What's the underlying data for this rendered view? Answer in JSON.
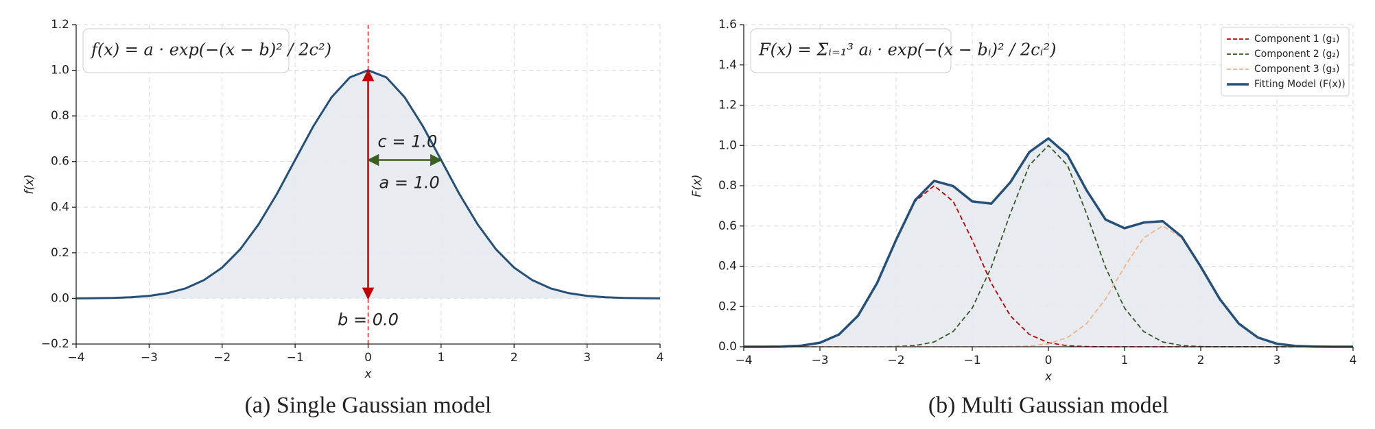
{
  "chart_data": [
    {
      "type": "line",
      "title": "(a) Single Gaussian model",
      "x_label": "x",
      "y_label": "f(x)",
      "formula": "f(x) = a · exp(−(x − b)² / 2c²)",
      "x": [
        -4,
        -3.75,
        -3.5,
        -3.25,
        -3,
        -2.75,
        -2.5,
        -2.25,
        -2,
        -1.75,
        -1.5,
        -1.25,
        -1,
        -0.75,
        -0.5,
        -0.25,
        0,
        0.25,
        0.5,
        0.75,
        1,
        1.25,
        1.5,
        1.75,
        2,
        2.25,
        2.5,
        2.75,
        3,
        3.25,
        3.5,
        3.75,
        4
      ],
      "series": [
        {
          "name": "f(x)",
          "color": "#24507a",
          "width": 3,
          "fill": "#e6eaf0",
          "values": [
            0,
            0.001,
            0.002,
            0.005,
            0.011,
            0.023,
            0.044,
            0.08,
            0.135,
            0.216,
            0.325,
            0.458,
            0.607,
            0.755,
            0.882,
            0.969,
            1,
            0.969,
            0.882,
            0.755,
            0.607,
            0.458,
            0.325,
            0.216,
            0.135,
            0.08,
            0.044,
            0.023,
            0.011,
            0.005,
            0.002,
            0.001,
            0
          ]
        }
      ],
      "params": [
        {
          "name": "a",
          "value": 1,
          "label": "a = 1.0",
          "color": "#c00000"
        },
        {
          "name": "b",
          "value": 0,
          "label": "b = 0.0",
          "color": "#c00000"
        },
        {
          "name": "c",
          "value": 1,
          "label": "c = 1.0",
          "color": "#3a5f1f"
        }
      ],
      "vline": {
        "x": 0,
        "color": "#e0262b"
      },
      "xlim": [
        -4,
        4
      ],
      "ylim": [
        -0.2,
        1.2
      ],
      "xticks": [
        {
          "value": -4,
          "label": "−4"
        },
        {
          "value": -3,
          "label": "−3"
        },
        {
          "value": -2,
          "label": "−2"
        },
        {
          "value": -1,
          "label": "−1"
        },
        0,
        1,
        2,
        3,
        4
      ],
      "yticks": [
        {
          "value": -0.2,
          "label": "−0.2"
        },
        {
          "value": 0,
          "label": "0.0"
        },
        0.2,
        0.4,
        0.6,
        0.8,
        {
          "value": 1,
          "label": "1.0"
        },
        1.2
      ],
      "grid": true
    },
    {
      "type": "line",
      "title": "(b) Multi Gaussian model",
      "x_label": "x",
      "y_label": "F(x)",
      "formula": "F(x) = Σᵢ₌₁³ aᵢ · exp(−(x − bᵢ)² / 2cᵢ²)",
      "x": [
        -4,
        -3.75,
        -3.5,
        -3.25,
        -3,
        -2.75,
        -2.5,
        -2.25,
        -2,
        -1.75,
        -1.5,
        -1.25,
        -1,
        -0.75,
        -0.5,
        -0.25,
        0,
        0.25,
        0.5,
        0.75,
        1,
        1.25,
        1.5,
        1.75,
        2,
        2.25,
        2.5,
        2.75,
        3,
        3.25,
        3.5,
        3.75,
        4
      ],
      "series": [
        {
          "name": "Component 1 (g₁)",
          "color": "#c00000",
          "width": 1.8,
          "dash": true,
          "values": [
            0,
            0,
            0.001,
            0.005,
            0.02,
            0.061,
            0.154,
            0.316,
            0.53,
            0.722,
            0.8,
            0.722,
            0.53,
            0.316,
            0.154,
            0.061,
            0.02,
            0.005,
            0.001,
            0,
            0,
            0,
            0,
            0,
            0,
            0,
            0,
            0,
            0,
            0,
            0,
            0,
            0
          ]
        },
        {
          "name": "Component 2 (g₂)",
          "color": "#375623",
          "width": 1.8,
          "dash": true,
          "values": [
            0,
            0,
            0,
            0,
            0,
            0,
            0,
            0,
            0.001,
            0.006,
            0.024,
            0.076,
            0.192,
            0.395,
            0.662,
            0.902,
            1,
            0.902,
            0.662,
            0.395,
            0.192,
            0.076,
            0.024,
            0.006,
            0.001,
            0,
            0,
            0,
            0,
            0,
            0,
            0,
            0
          ]
        },
        {
          "name": "Component 3 (g₃)",
          "color": "#f4b183",
          "width": 1.8,
          "dash": true,
          "values": [
            0,
            0,
            0,
            0,
            0,
            0,
            0,
            0,
            0,
            0,
            0,
            0,
            0,
            0,
            0.001,
            0.004,
            0.015,
            0.046,
            0.115,
            0.237,
            0.397,
            0.541,
            0.6,
            0.541,
            0.397,
            0.237,
            0.115,
            0.046,
            0.015,
            0.004,
            0.001,
            0,
            0
          ]
        },
        {
          "name": "Fitting Model (F(x))",
          "color": "#24507a",
          "width": 3.5,
          "fill": "#e6eaf0",
          "values": [
            0,
            0,
            0.001,
            0.005,
            0.02,
            0.061,
            0.154,
            0.316,
            0.531,
            0.728,
            0.824,
            0.798,
            0.722,
            0.711,
            0.817,
            0.967,
            1.035,
            0.953,
            0.778,
            0.632,
            0.589,
            0.617,
            0.624,
            0.547,
            0.398,
            0.237,
            0.115,
            0.046,
            0.015,
            0.004,
            0.001,
            0,
            0
          ]
        }
      ],
      "legend": "upper right",
      "xlim": [
        -4,
        4
      ],
      "ylim": [
        0,
        1.6
      ],
      "xticks": [
        {
          "value": -4,
          "label": "−4"
        },
        {
          "value": -3,
          "label": "−3"
        },
        {
          "value": -2,
          "label": "−2"
        },
        {
          "value": -1,
          "label": "−1"
        },
        0,
        1,
        2,
        3,
        4
      ],
      "yticks": [
        {
          "value": 0,
          "label": "0.0"
        },
        0.2,
        0.4,
        0.6,
        0.8,
        {
          "value": 1,
          "label": "1.0"
        },
        1.2,
        1.4,
        1.6
      ],
      "grid": true
    }
  ]
}
